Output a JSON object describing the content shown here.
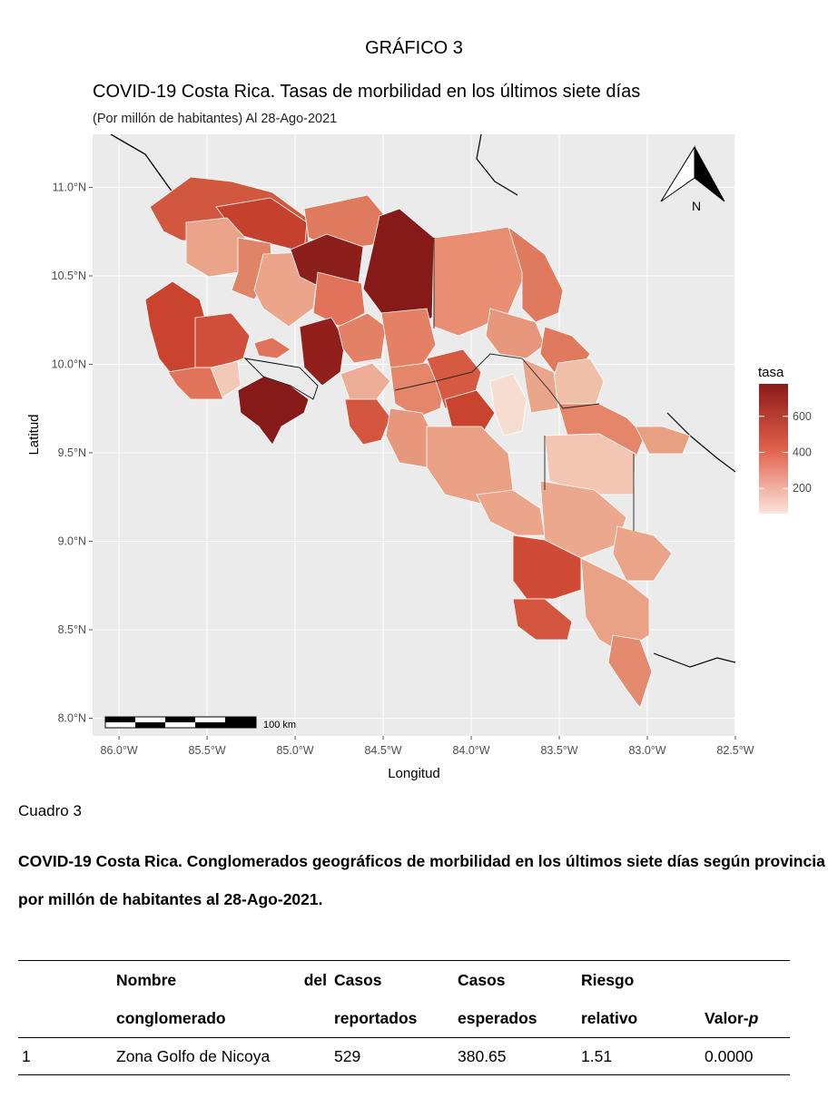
{
  "figure": {
    "heading": "GRÁFICO 3",
    "title": "COVID-19 Costa Rica. Tasas de morbilidad en los últimos siete días",
    "subtitle": "(Por millón de habitantes) Al 28-Ago-2021",
    "north_label": "N",
    "scalebar_label": "100 km",
    "colors": {
      "panel": "#ebebeb",
      "grid": "#ffffff",
      "low": "#fbe5dc",
      "mid": "#e0604a",
      "high": "#8b1a1a"
    }
  },
  "chart_data": {
    "type": "choropleth",
    "xlabel": "Longitud",
    "ylabel": "Latitud",
    "x_ticks": [
      "86.0°W",
      "85.5°W",
      "85.0°W",
      "84.5°W",
      "84.0°W",
      "83.5°W",
      "83.0°W",
      "82.5°W"
    ],
    "y_ticks": [
      "11.0°N",
      "10.5°N",
      "10.0°N",
      "9.5°N",
      "9.0°N",
      "8.5°N",
      "8.0°N"
    ],
    "xlim": [
      -86.15,
      -82.5
    ],
    "ylim": [
      7.9,
      11.3
    ],
    "legend": {
      "title": "tasa",
      "ticks": [
        "600",
        "400",
        "200"
      ],
      "tick_values": [
        600,
        400,
        200
      ],
      "range": [
        60,
        780
      ],
      "position": "right"
    }
  },
  "table": {
    "label": "Cuadro 3",
    "caption": "COVID-19 Costa Rica. Conglomerados geográficos de morbilidad en los últimos siete días según provincia por millón de habitantes al 28-Ago-2021.",
    "headers": [
      {
        "l1": "",
        "l2": ""
      },
      {
        "l1": "Nombre del",
        "l2": "conglomerado"
      },
      {
        "l1": "Casos",
        "l2": "reportados"
      },
      {
        "l1": "Casos",
        "l2": "esperados"
      },
      {
        "l1": "Riesgo",
        "l2": "relativo"
      },
      {
        "l1": "",
        "l2": "Valor-",
        "l2_italic": "p"
      }
    ],
    "rows": [
      [
        "1",
        "Zona Golfo de Nicoya",
        "529",
        "380.65",
        "1.51",
        "0.0000"
      ]
    ]
  }
}
